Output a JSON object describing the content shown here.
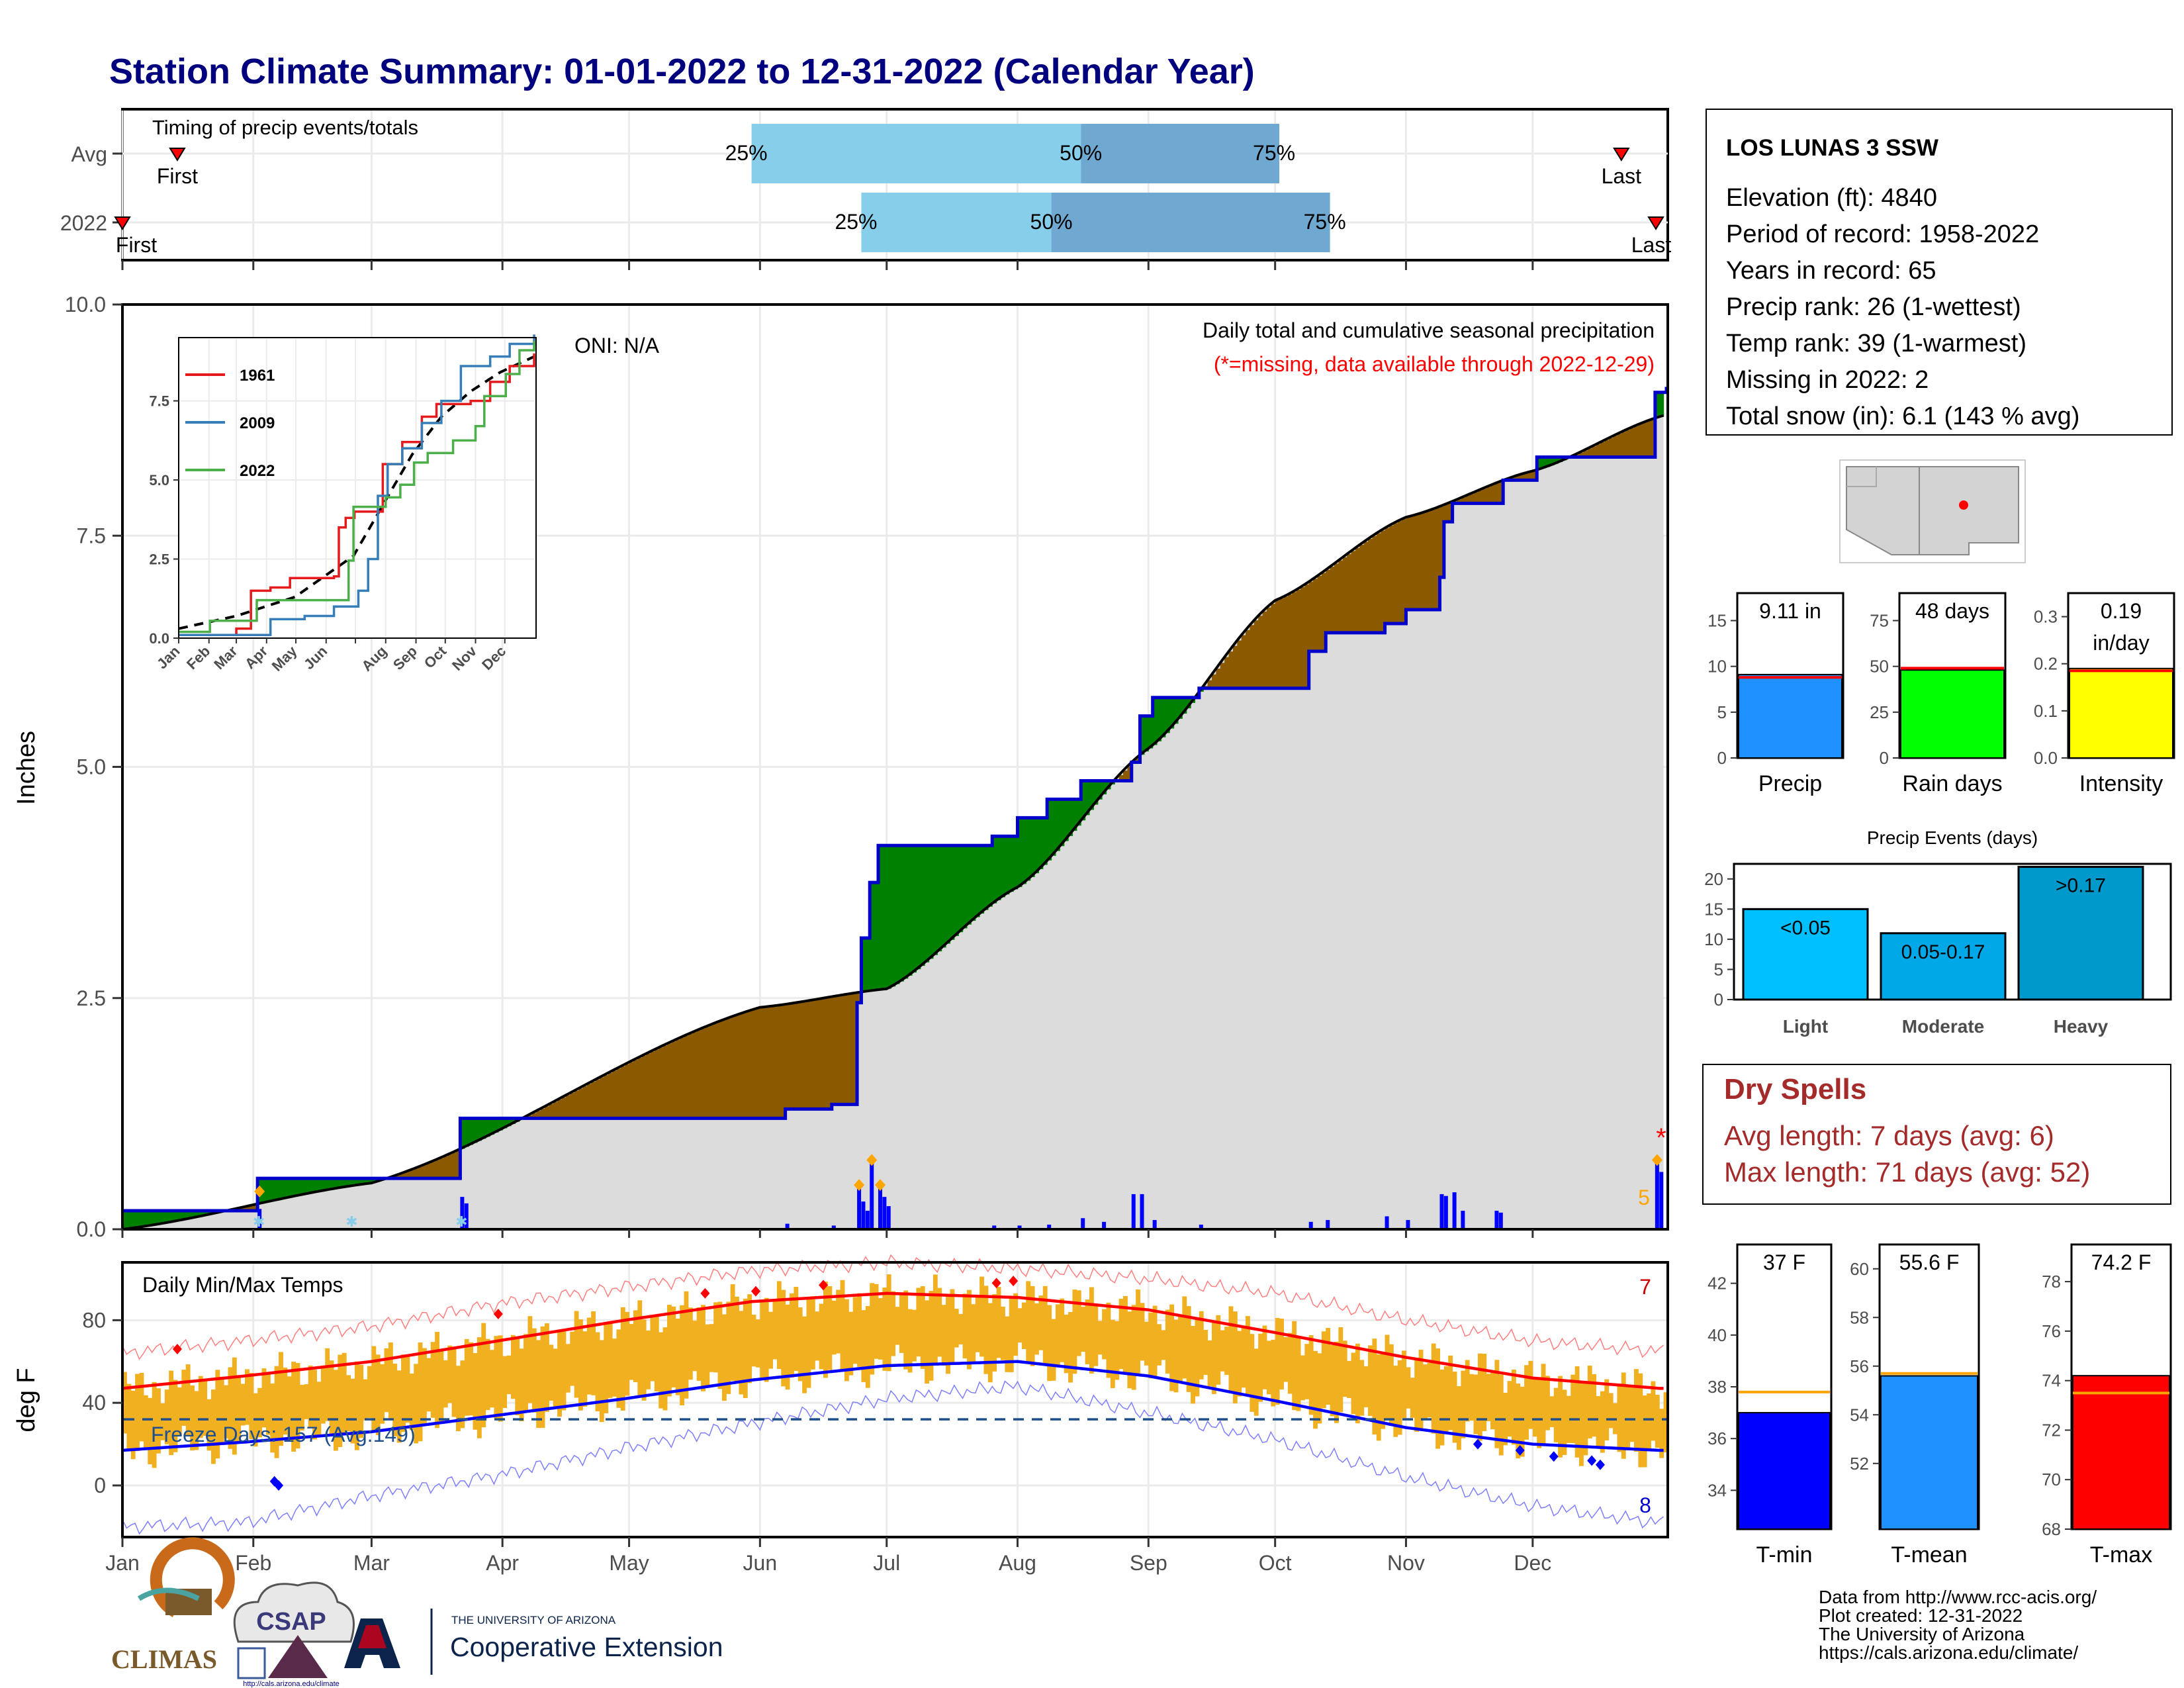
{
  "title": "Station Climate Summary: 01-01-2022 to 12-31-2022 (Calendar Year)",
  "colors": {
    "title": "#00007f",
    "precip_blue": "#1e90ff",
    "line_blue": "#0000cd",
    "surplus": "#008000",
    "deficit": "#8b5a00",
    "normal_fill": "#dcdcdc",
    "tmax": "#ff0000",
    "tmin": "#0000ff",
    "temp_bar": "#f0b020",
    "marker_orange": "#ffa500",
    "rain_days": "#00ff00",
    "intensity": "#ffff00",
    "light": "#00bfff",
    "moderate": "#00a8e8",
    "heavy": "#0099cc",
    "dry_spells": "#a52a2a",
    "timing_light": "#87ceeb",
    "timing_dark": "#6fa8d0"
  },
  "timing": {
    "title": "Timing of precip events/totals",
    "rows": [
      {
        "label": "Avg",
        "first_label": "First",
        "first_doy": 14,
        "p25_label": "25%",
        "p25_doy": 150,
        "p50_label": "50%",
        "p50_doy": 228,
        "p75_label": "75%",
        "p75_doy": 275,
        "last_label": "Last",
        "last_doy": 356
      },
      {
        "label": "2022",
        "first_label": "First",
        "first_doy": 1,
        "p25_label": "25%",
        "p25_doy": 176,
        "p50_label": "50%",
        "p50_doy": 221,
        "p75_label": "75%",
        "p75_doy": 287,
        "last_label": "Last",
        "last_doy": 372
      }
    ]
  },
  "month_labels": [
    "Jan",
    "Feb",
    "Mar",
    "Apr",
    "May",
    "Jun",
    "Jul",
    "Aug",
    "Sep",
    "Oct",
    "Nov",
    "Dec"
  ],
  "month_starts": [
    1,
    32,
    60,
    91,
    121,
    152,
    182,
    213,
    244,
    274,
    305,
    335
  ],
  "chart_data": [
    {
      "type": "area",
      "name": "Cumulative precipitation",
      "ylabel": "Inches",
      "ylim": [
        0,
        10
      ],
      "yticks": [
        "0.0",
        "2.5",
        "5.0",
        "7.5",
        "10.0"
      ],
      "annotation_title": "Daily total and cumulative seasonal precipitation",
      "annotation_missing": "(*=missing, data available through 2022-12-29)",
      "oni": "ONI: N/A",
      "missing_count": "5",
      "normal_total": 8.8,
      "cumulative_2022_steps": [
        [
          1,
          0.2
        ],
        [
          33,
          0.2
        ],
        [
          33,
          0.55
        ],
        [
          81,
          0.55
        ],
        [
          81,
          1.2
        ],
        [
          158,
          1.2
        ],
        [
          158,
          1.3
        ],
        [
          169,
          1.3
        ],
        [
          169,
          1.35
        ],
        [
          175,
          1.35
        ],
        [
          175,
          2.45
        ],
        [
          176,
          2.45
        ],
        [
          176,
          3.15
        ],
        [
          178,
          3.15
        ],
        [
          178,
          3.75
        ],
        [
          180,
          3.75
        ],
        [
          180,
          4.15
        ],
        [
          207,
          4.15
        ],
        [
          207,
          4.25
        ],
        [
          213,
          4.25
        ],
        [
          213,
          4.45
        ],
        [
          220,
          4.45
        ],
        [
          220,
          4.65
        ],
        [
          228,
          4.65
        ],
        [
          228,
          4.85
        ],
        [
          240,
          4.85
        ],
        [
          240,
          5.05
        ],
        [
          242,
          5.05
        ],
        [
          242,
          5.55
        ],
        [
          245,
          5.55
        ],
        [
          245,
          5.75
        ],
        [
          256,
          5.75
        ],
        [
          256,
          5.85
        ],
        [
          282,
          5.85
        ],
        [
          282,
          6.25
        ],
        [
          286,
          6.25
        ],
        [
          286,
          6.45
        ],
        [
          300,
          6.45
        ],
        [
          300,
          6.55
        ],
        [
          305,
          6.55
        ],
        [
          305,
          6.7
        ],
        [
          313,
          6.7
        ],
        [
          313,
          7.05
        ],
        [
          314,
          7.05
        ],
        [
          314,
          7.65
        ],
        [
          316,
          7.65
        ],
        [
          316,
          7.85
        ],
        [
          328,
          7.85
        ],
        [
          328,
          8.1
        ],
        [
          336,
          8.1
        ],
        [
          336,
          8.35
        ],
        [
          364,
          8.35
        ],
        [
          364,
          9.05
        ],
        [
          378,
          9.05
        ],
        [
          378,
          9.11
        ]
      ],
      "daily_bars": [
        [
          33,
          0.22
        ],
        [
          33,
          0.08
        ],
        [
          81,
          0.35
        ],
        [
          82,
          0.28
        ],
        [
          158,
          0.06
        ],
        [
          169,
          0.04
        ],
        [
          175,
          0.45
        ],
        [
          176,
          0.3
        ],
        [
          177,
          0.2
        ],
        [
          178,
          0.72
        ],
        [
          180,
          0.45
        ],
        [
          181,
          0.35
        ],
        [
          182,
          0.25
        ],
        [
          207,
          0.04
        ],
        [
          213,
          0.04
        ],
        [
          220,
          0.05
        ],
        [
          228,
          0.12
        ],
        [
          233,
          0.08
        ],
        [
          240,
          0.38
        ],
        [
          242,
          0.38
        ],
        [
          245,
          0.1
        ],
        [
          256,
          0.05
        ],
        [
          282,
          0.08
        ],
        [
          286,
          0.1
        ],
        [
          300,
          0.14
        ],
        [
          305,
          0.1
        ],
        [
          313,
          0.38
        ],
        [
          314,
          0.36
        ],
        [
          316,
          0.4
        ],
        [
          318,
          0.2
        ],
        [
          326,
          0.2
        ],
        [
          327,
          0.18
        ],
        [
          364,
          0.72
        ],
        [
          365,
          0.62
        ]
      ],
      "snow_days": [
        33,
        55,
        81
      ],
      "orange_markers": [
        [
          33,
          0.38
        ],
        [
          175,
          0.45
        ],
        [
          178,
          0.72
        ],
        [
          180,
          0.45
        ],
        [
          364,
          0.72
        ]
      ]
    },
    {
      "type": "line",
      "name": "Inset cumulative comparison",
      "ylim": [
        0,
        9.5
      ],
      "yticks": [
        "0.0",
        "2.5",
        "5.0",
        "7.5"
      ],
      "legend": [
        "1961",
        "2009",
        "2022"
      ],
      "series_colors": [
        "#e41a1c",
        "#377eb8",
        "#4daf4a"
      ],
      "series": [
        {
          "name": "1961",
          "points": [
            [
              1,
              0.1
            ],
            [
              40,
              0.1
            ],
            [
              60,
              0.3
            ],
            [
              75,
              1.5
            ],
            [
              95,
              1.6
            ],
            [
              115,
              1.9
            ],
            [
              160,
              1.95
            ],
            [
              165,
              3.5
            ],
            [
              172,
              3.8
            ],
            [
              181,
              4.0
            ],
            [
              210,
              5.5
            ],
            [
              230,
              6.2
            ],
            [
              250,
              7.0
            ],
            [
              265,
              7.4
            ],
            [
              300,
              7.5
            ],
            [
              320,
              8.1
            ],
            [
              340,
              8.6
            ],
            [
              365,
              9.0
            ]
          ]
        },
        {
          "name": "2009",
          "points": [
            [
              1,
              0.1
            ],
            [
              80,
              0.1
            ],
            [
              95,
              0.6
            ],
            [
              130,
              0.7
            ],
            [
              160,
              1.0
            ],
            [
              185,
              1.5
            ],
            [
              195,
              2.5
            ],
            [
              205,
              4.5
            ],
            [
              215,
              5.5
            ],
            [
              230,
              6.0
            ],
            [
              250,
              6.8
            ],
            [
              270,
              7.5
            ],
            [
              290,
              8.6
            ],
            [
              320,
              8.9
            ],
            [
              340,
              9.3
            ],
            [
              365,
              9.6
            ]
          ]
        },
        {
          "name": "2022",
          "points": [
            [
              1,
              0.2
            ],
            [
              33,
              0.55
            ],
            [
              81,
              1.2
            ],
            [
              175,
              2.45
            ],
            [
              180,
              4.15
            ],
            [
              213,
              4.45
            ],
            [
              228,
              4.85
            ],
            [
              242,
              5.55
            ],
            [
              256,
              5.85
            ],
            [
              282,
              6.25
            ],
            [
              305,
              6.7
            ],
            [
              314,
              7.65
            ],
            [
              336,
              8.35
            ],
            [
              350,
              9.1
            ],
            [
              365,
              9.4
            ]
          ]
        }
      ],
      "normal_points": [
        [
          1,
          0.3
        ],
        [
          60,
          0.7
        ],
        [
          120,
          1.3
        ],
        [
          180,
          2.6
        ],
        [
          210,
          4.2
        ],
        [
          240,
          5.8
        ],
        [
          270,
          7.0
        ],
        [
          300,
          7.8
        ],
        [
          330,
          8.4
        ],
        [
          365,
          8.9
        ]
      ]
    },
    {
      "type": "line",
      "name": "Daily Min/Max Temps",
      "title": "Daily Min/Max Temps",
      "ylabel": "deg F",
      "ylim": [
        -25,
        108
      ],
      "yticks": [
        "0",
        "40",
        "80"
      ],
      "freeze_text": "Freeze Days: 157 (Avg:149)",
      "freeze_line": 32,
      "count_top": "7",
      "count_bottom": "8",
      "avg_max": [
        [
          1,
          47
        ],
        [
          30,
          53
        ],
        [
          60,
          60
        ],
        [
          90,
          70
        ],
        [
          120,
          80
        ],
        [
          150,
          89
        ],
        [
          182,
          93
        ],
        [
          213,
          91
        ],
        [
          244,
          85
        ],
        [
          274,
          74
        ],
        [
          305,
          62
        ],
        [
          335,
          52
        ],
        [
          365,
          47
        ]
      ],
      "avg_min": [
        [
          1,
          17
        ],
        [
          30,
          21
        ],
        [
          60,
          26
        ],
        [
          90,
          34
        ],
        [
          120,
          42
        ],
        [
          150,
          51
        ],
        [
          182,
          58
        ],
        [
          213,
          60
        ],
        [
          244,
          53
        ],
        [
          274,
          41
        ],
        [
          305,
          28
        ],
        [
          335,
          20
        ],
        [
          365,
          17
        ]
      ],
      "rec_max": [
        [
          1,
          64
        ],
        [
          30,
          70
        ],
        [
          60,
          77
        ],
        [
          90,
          88
        ],
        [
          120,
          96
        ],
        [
          150,
          104
        ],
        [
          182,
          108
        ],
        [
          213,
          105
        ],
        [
          244,
          100
        ],
        [
          274,
          93
        ],
        [
          305,
          80
        ],
        [
          335,
          70
        ],
        [
          365,
          65
        ]
      ],
      "rec_min": [
        [
          1,
          -20
        ],
        [
          30,
          -18
        ],
        [
          60,
          -5
        ],
        [
          90,
          5
        ],
        [
          120,
          18
        ],
        [
          150,
          30
        ],
        [
          182,
          42
        ],
        [
          213,
          48
        ],
        [
          244,
          35
        ],
        [
          274,
          22
        ],
        [
          305,
          4
        ],
        [
          335,
          -10
        ],
        [
          365,
          -18
        ]
      ],
      "red_markers": [
        [
          14,
          66
        ],
        [
          90,
          83
        ],
        [
          139,
          93
        ],
        [
          151,
          94
        ],
        [
          167,
          97
        ],
        [
          208,
          98
        ],
        [
          212,
          99
        ]
      ],
      "blue_markers": [
        [
          37,
          2
        ],
        [
          38,
          0
        ],
        [
          322,
          20
        ],
        [
          332,
          17
        ],
        [
          340,
          14
        ],
        [
          349,
          12
        ],
        [
          351,
          10
        ]
      ]
    },
    {
      "type": "bar",
      "name": "Precip",
      "categories": [
        "Precip"
      ],
      "values": [
        9.11
      ],
      "normal": 8.8,
      "ylim": [
        0,
        18
      ],
      "yticks": [
        "0",
        "5",
        "10",
        "15"
      ],
      "label": "9.11 in"
    },
    {
      "type": "bar",
      "name": "Rain days",
      "categories": [
        "Rain days"
      ],
      "values": [
        48
      ],
      "normal": 49,
      "ylim": [
        0,
        90
      ],
      "yticks": [
        "0",
        "25",
        "50",
        "75"
      ],
      "label": "48 days"
    },
    {
      "type": "bar",
      "name": "Intensity",
      "categories": [
        "Intensity"
      ],
      "values": [
        0.19
      ],
      "normal": 0.185,
      "ylim": [
        0,
        0.35
      ],
      "yticks": [
        "0.0",
        "0.1",
        "0.2",
        "0.3"
      ],
      "label": "0.19",
      "label2": "in/day"
    },
    {
      "type": "bar",
      "name": "Precip Events (days)",
      "title": "Precip Events (days)",
      "categories": [
        "Light",
        "Moderate",
        "Heavy"
      ],
      "values": [
        15,
        11,
        22
      ],
      "labels": [
        "<0.05",
        "0.05-0.17",
        ">0.17"
      ],
      "ylim": [
        0,
        22.5
      ],
      "yticks": [
        "0",
        "5",
        "10",
        "15",
        "20"
      ]
    },
    {
      "type": "bar",
      "name": "T-min",
      "categories": [
        "T-min"
      ],
      "values": [
        37
      ],
      "normal": 37.8,
      "ylim": [
        32.5,
        43.5
      ],
      "yticks": [
        "34",
        "36",
        "38",
        "40",
        "42"
      ],
      "label": "37 F"
    },
    {
      "type": "bar",
      "name": "T-mean",
      "categories": [
        "T-mean"
      ],
      "values": [
        55.6
      ],
      "normal": 55.7,
      "ylim": [
        49.3,
        61
      ],
      "yticks": [
        "52",
        "54",
        "56",
        "58",
        "60"
      ],
      "label": "55.6 F"
    },
    {
      "type": "bar",
      "name": "T-max",
      "categories": [
        "T-max"
      ],
      "values": [
        74.2
      ],
      "normal": 73.5,
      "ylim": [
        68,
        79.5
      ],
      "yticks": [
        "68",
        "70",
        "72",
        "74",
        "76",
        "78"
      ],
      "label": "74.2 F"
    }
  ],
  "station": {
    "name": "LOS LUNAS 3 SSW",
    "lines": [
      "Elevation (ft): 4840",
      "Period of record: 1958-2022",
      "Years in record: 65",
      "Precip rank: 26 (1-wettest)",
      "Temp rank: 39 (1-warmest)",
      "Missing in 2022: 2",
      "Total snow (in): 6.1 (143 % avg)"
    ]
  },
  "dry_spells": {
    "title": "Dry Spells",
    "avg": "Avg length: 7 days (avg: 6)",
    "max": "Max length: 71 days (avg: 52)"
  },
  "logos": {
    "climas": "CLIMAS",
    "csap": "CSAP",
    "csap_url": "http://cals.arizona.edu/climate",
    "ua_small": "THE UNIVERSITY OF ARIZONA",
    "ua_big": "Cooperative Extension"
  },
  "footer": [
    "Data from http://www.rcc-acis.org/",
    "Plot created: 12-31-2022",
    "The University of Arizona",
    "https://cals.arizona.edu/climate/"
  ]
}
